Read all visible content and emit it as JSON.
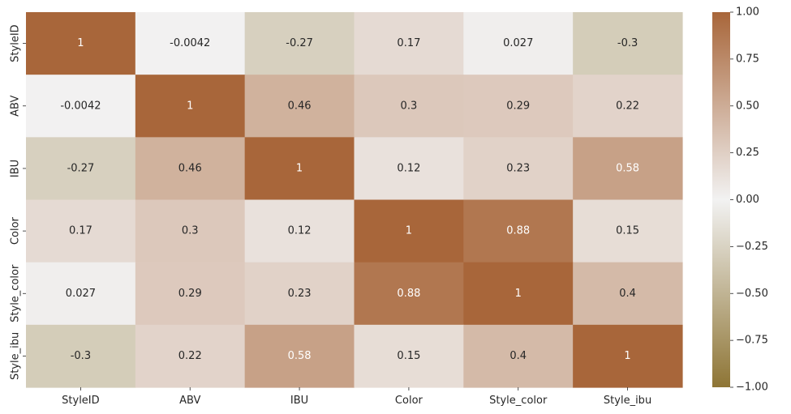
{
  "chart_data": {
    "type": "heatmap",
    "title": "",
    "xlabel": "",
    "ylabel": "",
    "x_categories": [
      "StyleID",
      "ABV",
      "IBU",
      "Color",
      "Style_color",
      "Style_ibu"
    ],
    "y_categories": [
      "StyleID",
      "ABV",
      "IBU",
      "Color",
      "Style_color",
      "Style_ibu"
    ],
    "values": [
      [
        1,
        -0.0042,
        -0.27,
        0.17,
        0.027,
        -0.3
      ],
      [
        -0.0042,
        1,
        0.46,
        0.3,
        0.29,
        0.22
      ],
      [
        -0.27,
        0.46,
        1,
        0.12,
        0.23,
        0.58
      ],
      [
        0.17,
        0.3,
        0.12,
        1,
        0.88,
        0.15
      ],
      [
        0.027,
        0.29,
        0.23,
        0.88,
        1,
        0.4
      ],
      [
        -0.3,
        0.22,
        0.58,
        0.15,
        0.4,
        1
      ]
    ],
    "annotations": [
      [
        "1",
        "-0.0042",
        "-0.27",
        "0.17",
        "0.027",
        "-0.3"
      ],
      [
        "-0.0042",
        "1",
        "0.46",
        "0.3",
        "0.29",
        "0.22"
      ],
      [
        "-0.27",
        "0.46",
        "1",
        "0.12",
        "0.23",
        "0.58"
      ],
      [
        "0.17",
        "0.3",
        "0.12",
        "1",
        "0.88",
        "0.15"
      ],
      [
        "0.027",
        "0.29",
        "0.23",
        "0.88",
        "1",
        "0.4"
      ],
      [
        "-0.3",
        "0.22",
        "0.58",
        "0.15",
        "0.4",
        "1"
      ]
    ],
    "color_range": [
      -1,
      1
    ],
    "colormap": {
      "low": "#8e7535",
      "mid": "#f2f2f2",
      "high": "#a8663a"
    },
    "colorbar": {
      "ticks": [
        1.0,
        0.75,
        0.5,
        0.25,
        0.0,
        -0.25,
        -0.5,
        -0.75,
        -1.0
      ],
      "tick_labels": [
        "1.00",
        "0.75",
        "0.50",
        "0.25",
        "0.00",
        "−0.25",
        "−0.50",
        "−0.75",
        "−1.00"
      ],
      "placement": "right"
    },
    "grid": false
  }
}
